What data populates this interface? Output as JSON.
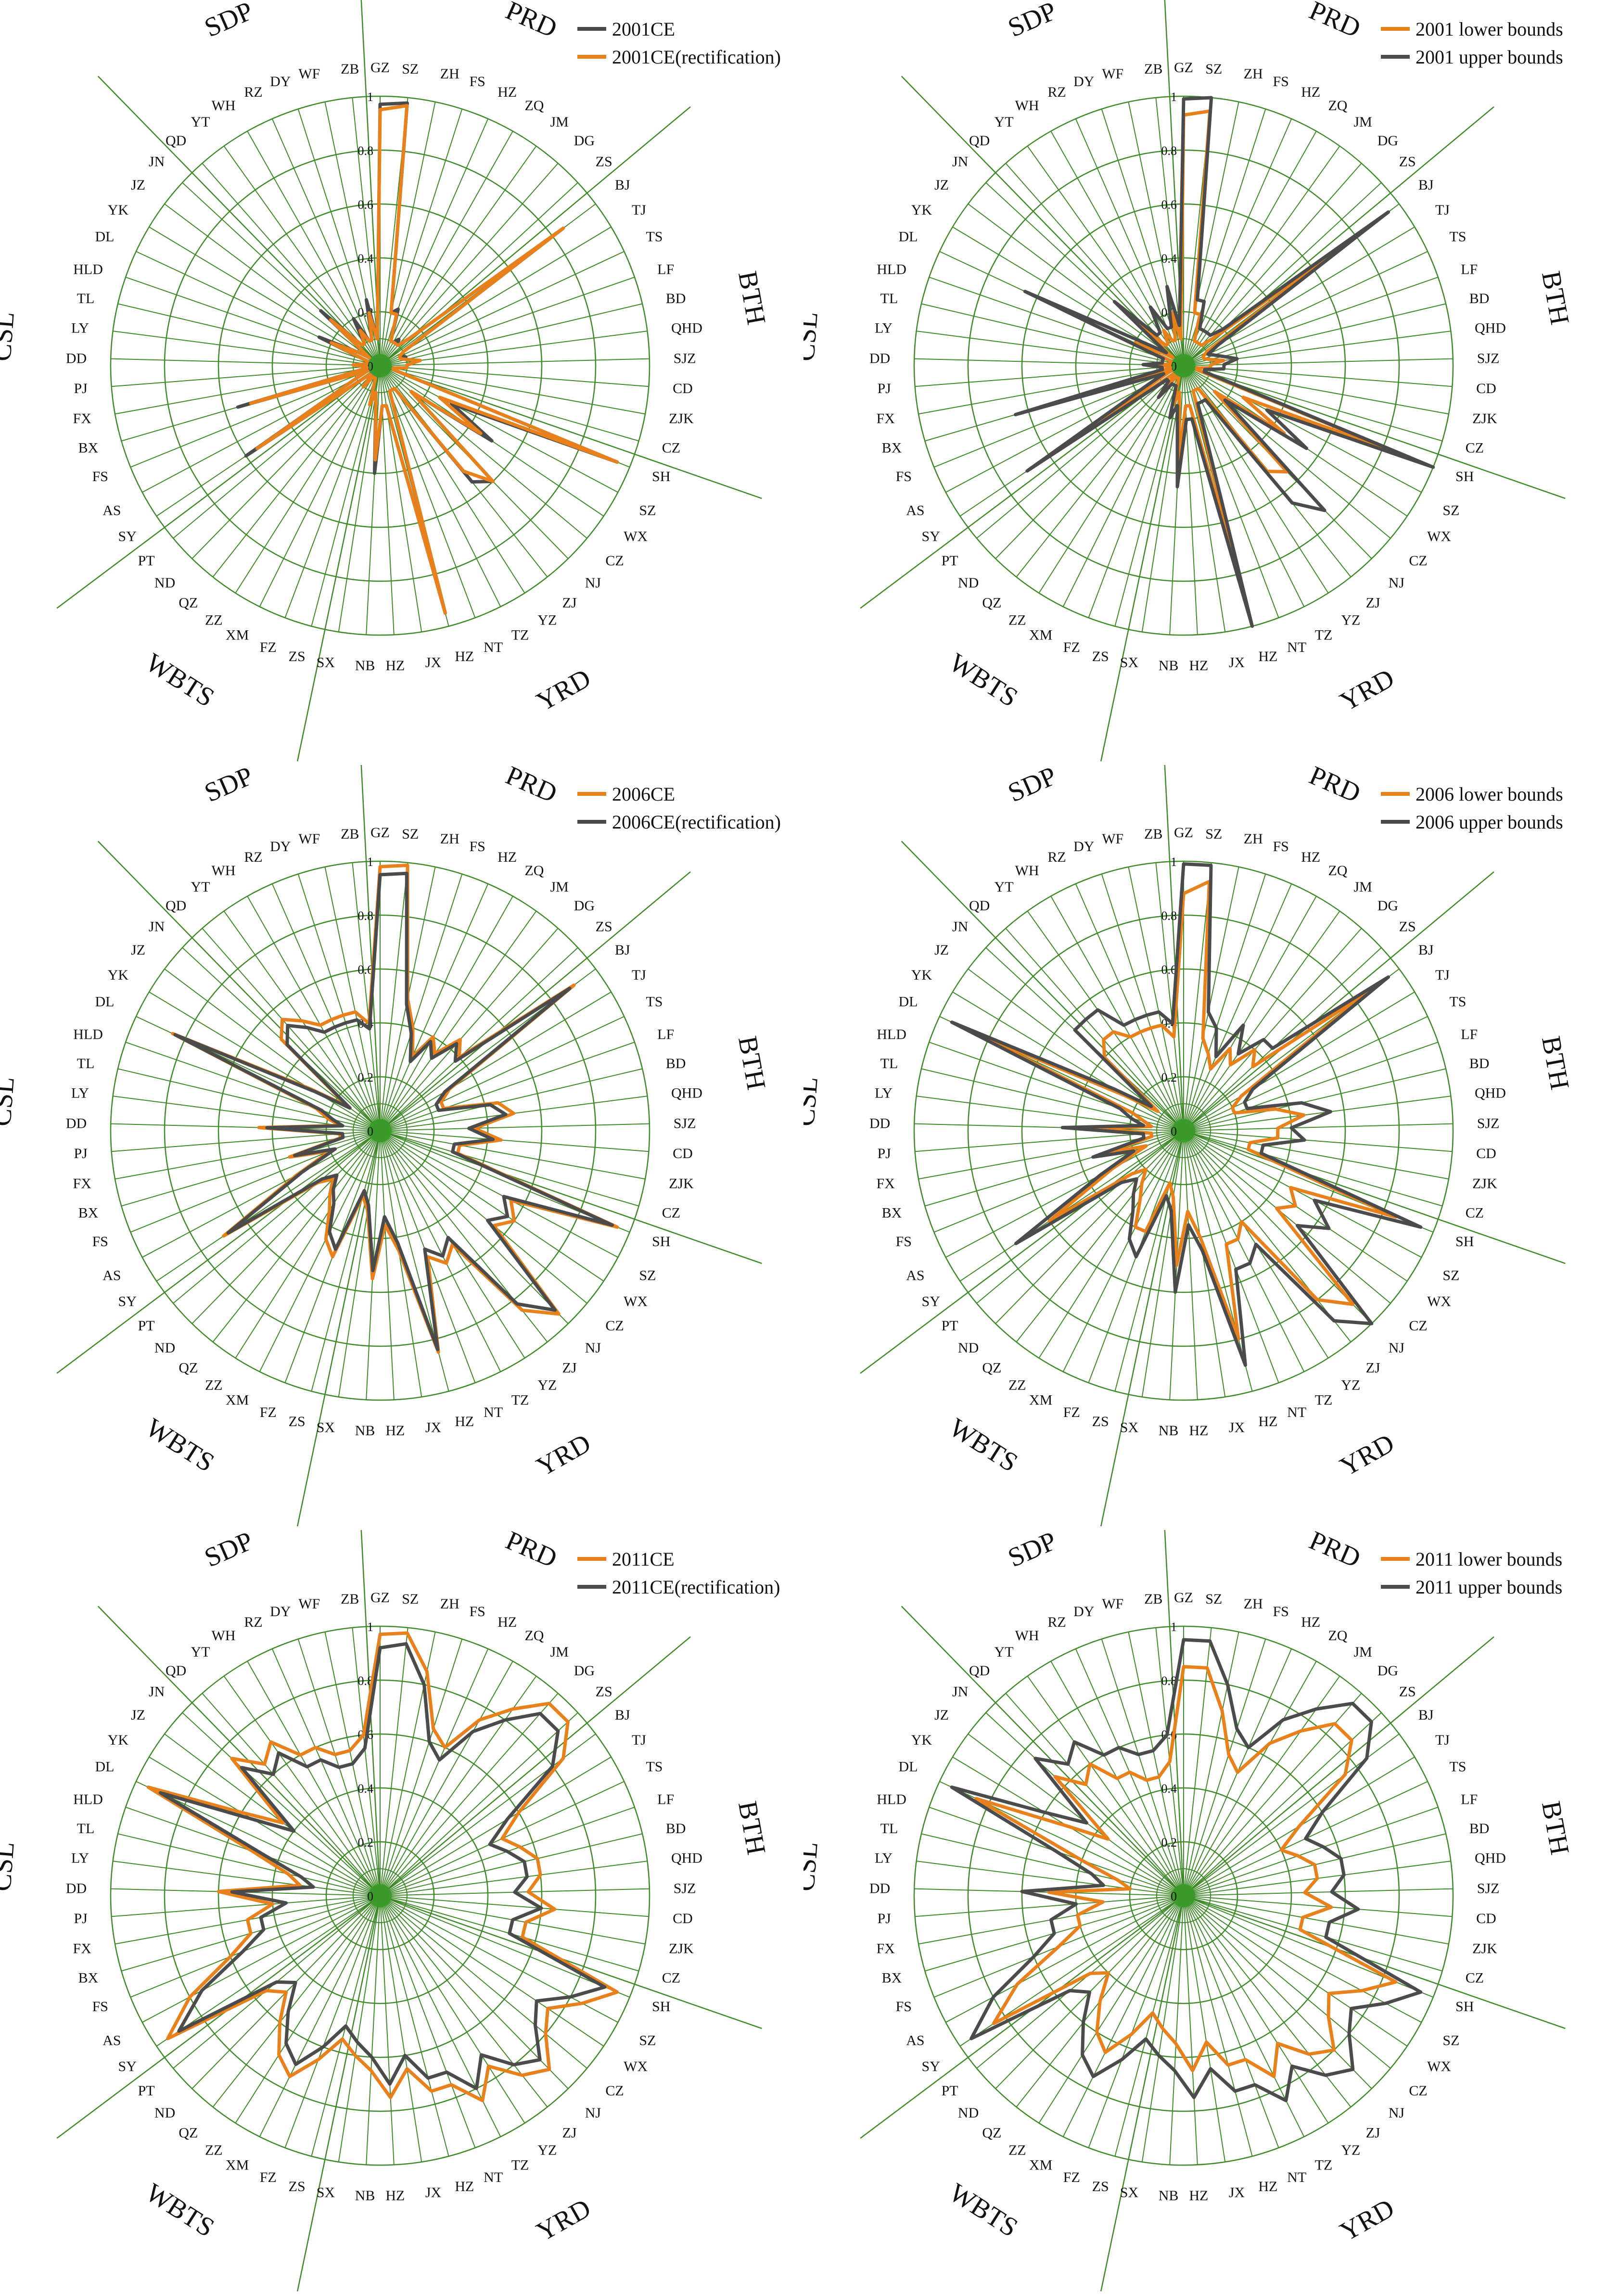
{
  "colors": {
    "orange": "#e8801c",
    "dark": "#4b4b4b",
    "grid": "#3f8a28",
    "center": "#3a9a2a"
  },
  "categories": [
    "GZ",
    "SZ",
    "ZH",
    "FS",
    "HZ",
    "ZQ",
    "JM",
    "DG",
    "ZS",
    "BJ",
    "TJ",
    "TS",
    "LF",
    "BD",
    "QHD",
    "SJZ",
    "CD",
    "ZJK",
    "CZ",
    "SH",
    "SZ",
    "WX",
    "CZ",
    "NJ",
    "ZJ",
    "YZ",
    "TZ",
    "NT",
    "HZ",
    "JX",
    "HZ",
    "NB",
    "SX",
    "ZS",
    "FZ",
    "XM",
    "ZZ",
    "QZ",
    "ND",
    "PT",
    "SY",
    "AS",
    "FS",
    "BX",
    "FX",
    "PJ",
    "DD",
    "LY",
    "TL",
    "HLD",
    "DL",
    "YK",
    "JZ",
    "JN",
    "QD",
    "YT",
    "WH",
    "RZ",
    "DY",
    "WF",
    "ZB"
  ],
  "ticks": [
    "0",
    "0.2",
    "0.4",
    "0.6",
    "0.8",
    "1"
  ],
  "regions": [
    "PRD",
    "BTH",
    "YRD",
    "WBTS",
    "CSL",
    "SDP"
  ],
  "chart_data": [
    {
      "type": "radar",
      "categories_ref": "categories",
      "rlim": [
        0,
        1
      ],
      "legend_position": "top-right",
      "series": [
        {
          "name": "2001CE",
          "color": "dark",
          "values": [
            0.97,
            0.98,
            0.2,
            0.22,
            0.1,
            0.1,
            0.12,
            0.1,
            0.15,
            0.85,
            0.1,
            0.08,
            0.1,
            0.1,
            0.15,
            0.1,
            0.1,
            0.05,
            0.05,
            0.95,
            0.3,
            0.5,
            0.15,
            0.6,
            0.55,
            0.1,
            0.1,
            0.1,
            0.95,
            0.15,
            0.15,
            0.4,
            0.1,
            0.15,
            0.05,
            0.05,
            0.05,
            0.1,
            0.05,
            0.05,
            0.6,
            0.1,
            0.05,
            0.55,
            0.05,
            0.05,
            0.1,
            0.05,
            0.05,
            0.05,
            0.25,
            0.1,
            0.05,
            0.3,
            0.1,
            0.1,
            0.2,
            0.1,
            0.1,
            0.25,
            0.1
          ]
        },
        {
          "name": "2001CE(rectification)",
          "color": "orange",
          "values": [
            0.95,
            0.97,
            0.2,
            0.2,
            0.1,
            0.1,
            0.1,
            0.1,
            0.15,
            0.85,
            0.1,
            0.08,
            0.08,
            0.1,
            0.15,
            0.1,
            0.1,
            0.05,
            0.05,
            0.95,
            0.25,
            0.45,
            0.15,
            0.6,
            0.5,
            0.1,
            0.1,
            0.1,
            0.95,
            0.15,
            0.15,
            0.35,
            0.1,
            0.15,
            0.05,
            0.05,
            0.05,
            0.1,
            0.05,
            0.05,
            0.55,
            0.1,
            0.05,
            0.5,
            0.05,
            0.05,
            0.1,
            0.05,
            0.05,
            0.05,
            0.2,
            0.1,
            0.05,
            0.25,
            0.1,
            0.1,
            0.15,
            0.1,
            0.1,
            0.2,
            0.1
          ]
        }
      ]
    },
    {
      "type": "radar",
      "categories_ref": "categories",
      "rlim": [
        0,
        1
      ],
      "legend_position": "top-right",
      "series": [
        {
          "name": "2001 lower bounds",
          "color": "orange",
          "values": [
            0.93,
            0.95,
            0.2,
            0.2,
            0.1,
            0.1,
            0.1,
            0.1,
            0.15,
            0.8,
            0.1,
            0.08,
            0.08,
            0.1,
            0.15,
            0.1,
            0.1,
            0.05,
            0.05,
            0.9,
            0.25,
            0.45,
            0.15,
            0.55,
            0.5,
            0.1,
            0.1,
            0.1,
            0.85,
            0.15,
            0.15,
            0.35,
            0.1,
            0.15,
            0.05,
            0.05,
            0.05,
            0.1,
            0.05,
            0.05,
            0.5,
            0.1,
            0.05,
            0.45,
            0.05,
            0.05,
            0.1,
            0.05,
            0.05,
            0.05,
            0.2,
            0.1,
            0.05,
            0.25,
            0.1,
            0.1,
            0.15,
            0.1,
            0.1,
            0.2,
            0.1
          ]
        },
        {
          "name": "2001 upper bounds",
          "color": "dark",
          "values": [
            0.99,
            1.0,
            0.25,
            0.25,
            0.15,
            0.15,
            0.15,
            0.15,
            0.2,
            0.95,
            0.15,
            0.1,
            0.12,
            0.15,
            0.2,
            0.15,
            0.15,
            0.08,
            0.08,
            1.0,
            0.35,
            0.55,
            0.2,
            0.75,
            0.65,
            0.15,
            0.15,
            0.15,
            1.0,
            0.2,
            0.2,
            0.45,
            0.15,
            0.2,
            0.08,
            0.08,
            0.08,
            0.15,
            0.08,
            0.08,
            0.7,
            0.15,
            0.08,
            0.65,
            0.08,
            0.08,
            0.15,
            0.08,
            0.08,
            0.08,
            0.65,
            0.15,
            0.08,
            0.35,
            0.15,
            0.15,
            0.25,
            0.15,
            0.15,
            0.3,
            0.15
          ]
        }
      ]
    },
    {
      "type": "radar",
      "categories_ref": "categories",
      "rlim": [
        0,
        1
      ],
      "legend_position": "top-right",
      "series": [
        {
          "name": "2006CE",
          "color": "orange",
          "values": [
            0.98,
            0.99,
            0.5,
            0.4,
            0.3,
            0.4,
            0.35,
            0.45,
            0.4,
            0.9,
            0.3,
            0.25,
            0.25,
            0.45,
            0.5,
            0.35,
            0.45,
            0.3,
            0.3,
            0.95,
            0.55,
            0.6,
            0.55,
            0.95,
            0.85,
            0.5,
            0.55,
            0.5,
            0.85,
            0.45,
            0.35,
            0.55,
            0.3,
            0.25,
            0.5,
            0.45,
            0.35,
            0.3,
            0.25,
            0.3,
            0.7,
            0.35,
            0.2,
            0.35,
            0.15,
            0.15,
            0.45,
            0.15,
            0.2,
            0.25,
            0.85,
            0.3,
            0.15,
            0.5,
            0.55,
            0.5,
            0.45,
            0.45,
            0.45,
            0.45,
            0.4
          ]
        },
        {
          "name": "2006CE(rectification)",
          "color": "dark",
          "values": [
            0.95,
            0.96,
            0.48,
            0.38,
            0.28,
            0.38,
            0.33,
            0.43,
            0.38,
            0.88,
            0.28,
            0.23,
            0.23,
            0.42,
            0.47,
            0.33,
            0.42,
            0.28,
            0.28,
            0.93,
            0.52,
            0.57,
            0.52,
            0.93,
            0.82,
            0.47,
            0.52,
            0.47,
            0.84,
            0.42,
            0.32,
            0.52,
            0.28,
            0.23,
            0.47,
            0.42,
            0.32,
            0.28,
            0.23,
            0.28,
            0.68,
            0.33,
            0.18,
            0.33,
            0.14,
            0.14,
            0.42,
            0.14,
            0.18,
            0.23,
            0.84,
            0.28,
            0.14,
            0.47,
            0.52,
            0.47,
            0.42,
            0.42,
            0.42,
            0.42,
            0.38
          ]
        }
      ]
    },
    {
      "type": "radar",
      "categories_ref": "categories",
      "rlim": [
        0,
        1
      ],
      "legend_position": "top-right",
      "series": [
        {
          "name": "2006 lower bounds",
          "color": "orange",
          "values": [
            0.88,
            0.93,
            0.35,
            0.3,
            0.25,
            0.35,
            0.3,
            0.4,
            0.35,
            0.85,
            0.25,
            0.2,
            0.2,
            0.35,
            0.45,
            0.35,
            0.35,
            0.25,
            0.25,
            0.85,
            0.45,
            0.5,
            0.45,
            0.9,
            0.8,
            0.4,
            0.45,
            0.45,
            0.8,
            0.4,
            0.3,
            0.5,
            0.25,
            0.2,
            0.4,
            0.4,
            0.3,
            0.25,
            0.2,
            0.25,
            0.6,
            0.3,
            0.15,
            0.3,
            0.12,
            0.12,
            0.35,
            0.12,
            0.15,
            0.2,
            0.85,
            0.25,
            0.12,
            0.4,
            0.45,
            0.45,
            0.4,
            0.4,
            0.4,
            0.4,
            0.35
          ]
        },
        {
          "name": "2006 upper bounds",
          "color": "dark",
          "values": [
            0.99,
            0.99,
            0.45,
            0.4,
            0.3,
            0.45,
            0.35,
            0.45,
            0.45,
            0.95,
            0.3,
            0.25,
            0.25,
            0.45,
            0.55,
            0.4,
            0.45,
            0.3,
            0.3,
            0.95,
            0.55,
            0.65,
            0.55,
            1.0,
            0.9,
            0.5,
            0.55,
            0.55,
            0.9,
            0.45,
            0.35,
            0.6,
            0.3,
            0.25,
            0.5,
            0.45,
            0.35,
            0.3,
            0.25,
            0.3,
            0.75,
            0.35,
            0.2,
            0.35,
            0.15,
            0.15,
            0.45,
            0.15,
            0.2,
            0.25,
            0.95,
            0.3,
            0.15,
            0.55,
            0.55,
            0.55,
            0.45,
            0.45,
            0.45,
            0.45,
            0.4
          ]
        }
      ]
    },
    {
      "type": "radar",
      "categories_ref": "categories",
      "rlim": [
        0,
        1
      ],
      "legend_position": "top-right",
      "series": [
        {
          "name": "2011CE",
          "color": "orange",
          "values": [
            0.97,
            0.98,
            0.85,
            0.65,
            0.6,
            0.75,
            0.85,
            0.95,
            0.95,
            0.85,
            0.6,
            0.5,
            0.55,
            0.6,
            0.6,
            0.55,
            0.65,
            0.55,
            0.55,
            0.95,
            0.85,
            0.75,
            0.8,
            0.9,
            0.85,
            0.75,
            0.85,
            0.75,
            0.75,
            0.65,
            0.75,
            0.65,
            0.6,
            0.55,
            0.65,
            0.75,
            0.7,
            0.6,
            0.5,
            0.55,
            0.95,
            0.8,
            0.6,
            0.5,
            0.5,
            0.4,
            0.6,
            0.3,
            0.35,
            0.5,
            0.95,
            0.6,
            0.45,
            0.75,
            0.65,
            0.7,
            0.6,
            0.6,
            0.55,
            0.55,
            0.6
          ]
        },
        {
          "name": "2011CE(rectification)",
          "color": "dark",
          "values": [
            0.92,
            0.94,
            0.8,
            0.6,
            0.55,
            0.7,
            0.8,
            0.9,
            0.9,
            0.8,
            0.55,
            0.45,
            0.5,
            0.55,
            0.55,
            0.5,
            0.6,
            0.5,
            0.5,
            0.9,
            0.8,
            0.7,
            0.75,
            0.85,
            0.8,
            0.7,
            0.8,
            0.7,
            0.7,
            0.6,
            0.7,
            0.6,
            0.55,
            0.5,
            0.6,
            0.7,
            0.65,
            0.55,
            0.45,
            0.5,
            0.9,
            0.75,
            0.55,
            0.45,
            0.45,
            0.35,
            0.55,
            0.25,
            0.3,
            0.45,
            0.9,
            0.55,
            0.4,
            0.7,
            0.6,
            0.65,
            0.55,
            0.55,
            0.5,
            0.5,
            0.55
          ]
        }
      ]
    },
    {
      "type": "radar",
      "categories_ref": "categories",
      "rlim": [
        0,
        1
      ],
      "legend_position": "top-right",
      "series": [
        {
          "name": "2011 lower bounds",
          "color": "orange",
          "values": [
            0.85,
            0.85,
            0.7,
            0.55,
            0.5,
            0.65,
            0.75,
            0.85,
            0.85,
            0.75,
            0.5,
            0.4,
            0.45,
            0.5,
            0.5,
            0.45,
            0.55,
            0.45,
            0.45,
            0.85,
            0.75,
            0.65,
            0.7,
            0.8,
            0.75,
            0.65,
            0.75,
            0.65,
            0.65,
            0.55,
            0.65,
            0.55,
            0.5,
            0.45,
            0.55,
            0.65,
            0.6,
            0.5,
            0.4,
            0.45,
            0.85,
            0.7,
            0.5,
            0.4,
            0.4,
            0.3,
            0.5,
            0.2,
            0.25,
            0.4,
            0.85,
            0.5,
            0.35,
            0.65,
            0.55,
            0.6,
            0.5,
            0.5,
            0.45,
            0.45,
            0.5
          ]
        },
        {
          "name": "2011 upper bounds",
          "color": "dark",
          "values": [
            0.95,
            0.95,
            0.8,
            0.65,
            0.6,
            0.75,
            0.85,
            0.95,
            0.95,
            0.85,
            0.6,
            0.5,
            0.55,
            0.6,
            0.6,
            0.55,
            0.65,
            0.55,
            0.55,
            0.95,
            0.85,
            0.75,
            0.8,
            0.9,
            0.85,
            0.75,
            0.85,
            0.75,
            0.75,
            0.65,
            0.75,
            0.65,
            0.6,
            0.55,
            0.65,
            0.75,
            0.7,
            0.6,
            0.5,
            0.55,
            0.95,
            0.8,
            0.6,
            0.5,
            0.5,
            0.4,
            0.6,
            0.3,
            0.35,
            0.5,
            0.95,
            0.6,
            0.45,
            0.75,
            0.65,
            0.7,
            0.6,
            0.6,
            0.55,
            0.55,
            0.6
          ]
        }
      ]
    }
  ]
}
